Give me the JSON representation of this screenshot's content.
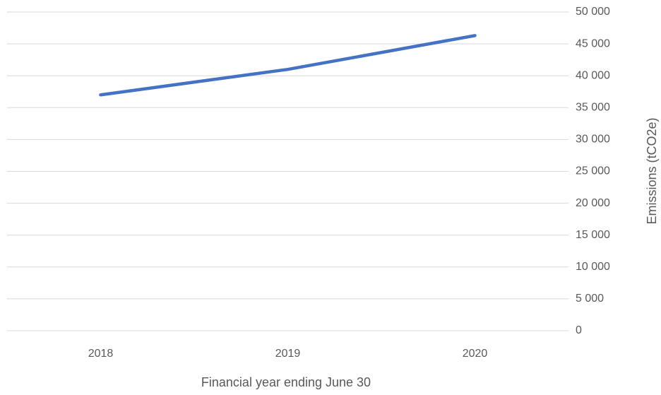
{
  "chart_data": {
    "type": "line",
    "x_label": "Financial year ending June 30",
    "y_label": "Emissions (tCO2e)",
    "categories": [
      "2018",
      "2019",
      "2020"
    ],
    "series": [
      {
        "name": "Emissions",
        "color": "#4472c4",
        "values": [
          37000,
          41000,
          46300
        ]
      }
    ],
    "ylim": [
      0,
      50000
    ],
    "yticks": [
      0,
      {
        "value": 5000,
        "label": "5 000"
      },
      {
        "value": 10000,
        "label": "10 000"
      },
      {
        "value": 15000,
        "label": "15 000"
      },
      {
        "value": 20000,
        "label": "20 000"
      },
      {
        "value": 25000,
        "label": "25 000"
      },
      {
        "value": 30000,
        "label": "30 000"
      },
      {
        "value": 35000,
        "label": "35 000"
      },
      {
        "value": 40000,
        "label": "40 000"
      },
      {
        "value": 45000,
        "label": "45 000"
      },
      {
        "value": 50000,
        "label": "50 000"
      }
    ],
    "grid": true,
    "y_axis_side": "right",
    "legend": false
  }
}
